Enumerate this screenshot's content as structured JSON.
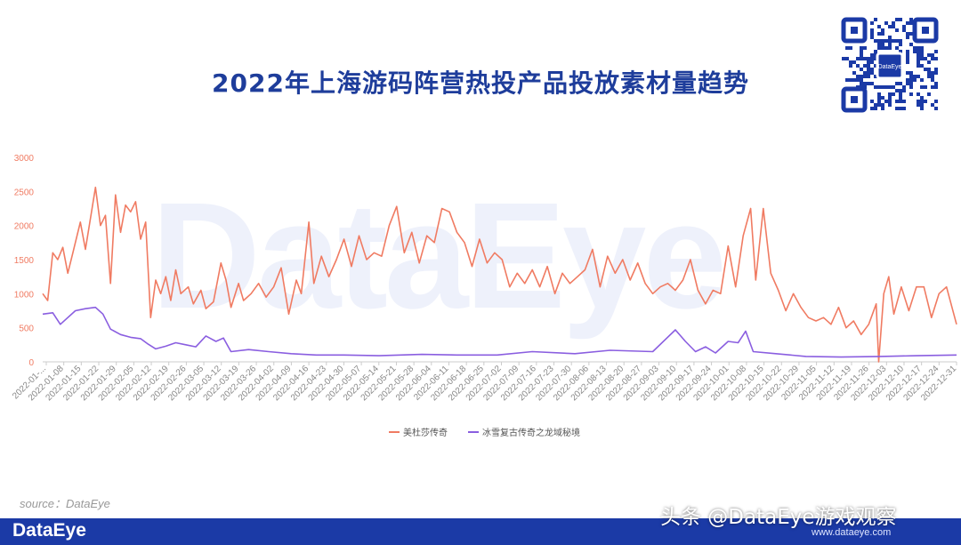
{
  "title": "2022年上海游码阵营热投产品投放素材量趋势",
  "watermark": "DataEye",
  "source": "source：DataEye",
  "footer_logo": "DataEye",
  "caption": "头条 @DataEye游戏观察",
  "caption_url": "www.dataeye.com",
  "qr_label": "DataEye",
  "colors": {
    "title": "#1e3d9b",
    "series1": "#f07b62",
    "series2": "#8a5ee0",
    "axis": "#999999",
    "footer": "#1b3aa6"
  },
  "chart_data": {
    "type": "line",
    "title": "2022年上海游码阵营热投产品投放素材量趋势",
    "xlabel": "",
    "ylabel": "",
    "ylim": [
      0,
      3000
    ],
    "yticks": [
      0,
      500,
      1000,
      1500,
      2000,
      2500,
      3000
    ],
    "x_ticks": [
      "2022-01-...",
      "2022-01-08",
      "2022-01-15",
      "2022-01-22",
      "2022-01-29",
      "2022-02-05",
      "2022-02-12",
      "2022-02-19",
      "2022-02-26",
      "2022-03-05",
      "2022-03-12",
      "2022-03-19",
      "2022-03-26",
      "2022-04-02",
      "2022-04-09",
      "2022-04-16",
      "2022-04-23",
      "2022-04-30",
      "2022-05-07",
      "2022-05-14",
      "2022-05-21",
      "2022-05-28",
      "2022-06-04",
      "2022-06-11",
      "2022-06-18",
      "2022-06-25",
      "2022-07-02",
      "2022-07-09",
      "2022-07-16",
      "2022-07-23",
      "2022-07-30",
      "2022-08-06",
      "2022-08-13",
      "2022-08-20",
      "2022-08-27",
      "2022-09-03",
      "2022-09-10",
      "2022-09-17",
      "2022-09-24",
      "2022-10-01",
      "2022-10-08",
      "2022-10-15",
      "2022-10-22",
      "2022-10-29",
      "2022-11-05",
      "2022-11-12",
      "2022-11-19",
      "2022-11-26",
      "2022-12-03",
      "2022-12-10",
      "2022-12-17",
      "2022-12-24",
      "2022-12-31"
    ],
    "legend_position": "bottom",
    "grid": false,
    "series": [
      {
        "name": "美杜莎传奇",
        "color": "#f07b62",
        "values": [
          {
            "x": "2022-01-01",
            "y": 1000
          },
          {
            "x": "2022-01-03",
            "y": 900
          },
          {
            "x": "2022-01-05",
            "y": 1600
          },
          {
            "x": "2022-01-07",
            "y": 1500
          },
          {
            "x": "2022-01-09",
            "y": 1680
          },
          {
            "x": "2022-01-11",
            "y": 1300
          },
          {
            "x": "2022-01-13",
            "y": 1600
          },
          {
            "x": "2022-01-16",
            "y": 2050
          },
          {
            "x": "2022-01-18",
            "y": 1650
          },
          {
            "x": "2022-01-20",
            "y": 2100
          },
          {
            "x": "2022-01-22",
            "y": 2560
          },
          {
            "x": "2022-01-24",
            "y": 2000
          },
          {
            "x": "2022-01-26",
            "y": 2150
          },
          {
            "x": "2022-01-28",
            "y": 1150
          },
          {
            "x": "2022-01-30",
            "y": 2450
          },
          {
            "x": "2022-02-01",
            "y": 1900
          },
          {
            "x": "2022-02-03",
            "y": 2300
          },
          {
            "x": "2022-02-05",
            "y": 2200
          },
          {
            "x": "2022-02-07",
            "y": 2350
          },
          {
            "x": "2022-02-09",
            "y": 1800
          },
          {
            "x": "2022-02-11",
            "y": 2050
          },
          {
            "x": "2022-02-13",
            "y": 650
          },
          {
            "x": "2022-02-15",
            "y": 1200
          },
          {
            "x": "2022-02-17",
            "y": 1000
          },
          {
            "x": "2022-02-19",
            "y": 1250
          },
          {
            "x": "2022-02-21",
            "y": 900
          },
          {
            "x": "2022-02-23",
            "y": 1350
          },
          {
            "x": "2022-02-25",
            "y": 1000
          },
          {
            "x": "2022-02-28",
            "y": 1100
          },
          {
            "x": "2022-03-02",
            "y": 850
          },
          {
            "x": "2022-03-05",
            "y": 1050
          },
          {
            "x": "2022-03-07",
            "y": 780
          },
          {
            "x": "2022-03-10",
            "y": 880
          },
          {
            "x": "2022-03-13",
            "y": 1450
          },
          {
            "x": "2022-03-15",
            "y": 1200
          },
          {
            "x": "2022-03-17",
            "y": 800
          },
          {
            "x": "2022-03-20",
            "y": 1150
          },
          {
            "x": "2022-03-22",
            "y": 900
          },
          {
            "x": "2022-03-25",
            "y": 1000
          },
          {
            "x": "2022-03-28",
            "y": 1150
          },
          {
            "x": "2022-03-31",
            "y": 950
          },
          {
            "x": "2022-04-03",
            "y": 1100
          },
          {
            "x": "2022-04-06",
            "y": 1380
          },
          {
            "x": "2022-04-09",
            "y": 700
          },
          {
            "x": "2022-04-12",
            "y": 1200
          },
          {
            "x": "2022-04-14",
            "y": 1000
          },
          {
            "x": "2022-04-17",
            "y": 2050
          },
          {
            "x": "2022-04-19",
            "y": 1150
          },
          {
            "x": "2022-04-22",
            "y": 1550
          },
          {
            "x": "2022-04-25",
            "y": 1250
          },
          {
            "x": "2022-04-28",
            "y": 1500
          },
          {
            "x": "2022-05-01",
            "y": 1800
          },
          {
            "x": "2022-05-04",
            "y": 1400
          },
          {
            "x": "2022-05-07",
            "y": 1850
          },
          {
            "x": "2022-05-10",
            "y": 1500
          },
          {
            "x": "2022-05-13",
            "y": 1600
          },
          {
            "x": "2022-05-16",
            "y": 1550
          },
          {
            "x": "2022-05-19",
            "y": 2000
          },
          {
            "x": "2022-05-22",
            "y": 2280
          },
          {
            "x": "2022-05-25",
            "y": 1600
          },
          {
            "x": "2022-05-28",
            "y": 1900
          },
          {
            "x": "2022-05-31",
            "y": 1450
          },
          {
            "x": "2022-06-03",
            "y": 1850
          },
          {
            "x": "2022-06-06",
            "y": 1750
          },
          {
            "x": "2022-06-09",
            "y": 2250
          },
          {
            "x": "2022-06-12",
            "y": 2200
          },
          {
            "x": "2022-06-15",
            "y": 1900
          },
          {
            "x": "2022-06-18",
            "y": 1750
          },
          {
            "x": "2022-06-21",
            "y": 1400
          },
          {
            "x": "2022-06-24",
            "y": 1800
          },
          {
            "x": "2022-06-27",
            "y": 1450
          },
          {
            "x": "2022-06-30",
            "y": 1600
          },
          {
            "x": "2022-07-03",
            "y": 1500
          },
          {
            "x": "2022-07-06",
            "y": 1100
          },
          {
            "x": "2022-07-09",
            "y": 1300
          },
          {
            "x": "2022-07-12",
            "y": 1150
          },
          {
            "x": "2022-07-15",
            "y": 1350
          },
          {
            "x": "2022-07-18",
            "y": 1100
          },
          {
            "x": "2022-07-21",
            "y": 1400
          },
          {
            "x": "2022-07-24",
            "y": 1000
          },
          {
            "x": "2022-07-27",
            "y": 1300
          },
          {
            "x": "2022-07-30",
            "y": 1150
          },
          {
            "x": "2022-08-02",
            "y": 1250
          },
          {
            "x": "2022-08-05",
            "y": 1350
          },
          {
            "x": "2022-08-08",
            "y": 1650
          },
          {
            "x": "2022-08-11",
            "y": 1100
          },
          {
            "x": "2022-08-14",
            "y": 1550
          },
          {
            "x": "2022-08-17",
            "y": 1300
          },
          {
            "x": "2022-08-20",
            "y": 1500
          },
          {
            "x": "2022-08-23",
            "y": 1200
          },
          {
            "x": "2022-08-26",
            "y": 1450
          },
          {
            "x": "2022-08-29",
            "y": 1150
          },
          {
            "x": "2022-09-01",
            "y": 1000
          },
          {
            "x": "2022-09-04",
            "y": 1100
          },
          {
            "x": "2022-09-07",
            "y": 1150
          },
          {
            "x": "2022-09-10",
            "y": 1050
          },
          {
            "x": "2022-09-13",
            "y": 1200
          },
          {
            "x": "2022-09-16",
            "y": 1500
          },
          {
            "x": "2022-09-19",
            "y": 1050
          },
          {
            "x": "2022-09-22",
            "y": 850
          },
          {
            "x": "2022-09-25",
            "y": 1050
          },
          {
            "x": "2022-09-28",
            "y": 1000
          },
          {
            "x": "2022-10-01",
            "y": 1700
          },
          {
            "x": "2022-10-04",
            "y": 1100
          },
          {
            "x": "2022-10-07",
            "y": 1850
          },
          {
            "x": "2022-10-10",
            "y": 2250
          },
          {
            "x": "2022-10-12",
            "y": 1200
          },
          {
            "x": "2022-10-15",
            "y": 2250
          },
          {
            "x": "2022-10-18",
            "y": 1300
          },
          {
            "x": "2022-10-21",
            "y": 1050
          },
          {
            "x": "2022-10-24",
            "y": 750
          },
          {
            "x": "2022-10-27",
            "y": 1000
          },
          {
            "x": "2022-10-30",
            "y": 800
          },
          {
            "x": "2022-11-02",
            "y": 650
          },
          {
            "x": "2022-11-05",
            "y": 600
          },
          {
            "x": "2022-11-08",
            "y": 650
          },
          {
            "x": "2022-11-11",
            "y": 550
          },
          {
            "x": "2022-11-14",
            "y": 800
          },
          {
            "x": "2022-11-17",
            "y": 500
          },
          {
            "x": "2022-11-20",
            "y": 600
          },
          {
            "x": "2022-11-23",
            "y": 400
          },
          {
            "x": "2022-11-26",
            "y": 550
          },
          {
            "x": "2022-11-29",
            "y": 850
          },
          {
            "x": "2022-11-30",
            "y": 0
          },
          {
            "x": "2022-12-02",
            "y": 1000
          },
          {
            "x": "2022-12-04",
            "y": 1250
          },
          {
            "x": "2022-12-06",
            "y": 700
          },
          {
            "x": "2022-12-09",
            "y": 1100
          },
          {
            "x": "2022-12-12",
            "y": 750
          },
          {
            "x": "2022-12-15",
            "y": 1100
          },
          {
            "x": "2022-12-18",
            "y": 1100
          },
          {
            "x": "2022-12-21",
            "y": 650
          },
          {
            "x": "2022-12-24",
            "y": 1000
          },
          {
            "x": "2022-12-27",
            "y": 1100
          },
          {
            "x": "2022-12-31",
            "y": 550
          }
        ]
      },
      {
        "name": "冰雪复古传奇之龙域秘境",
        "color": "#8a5ee0",
        "values": [
          {
            "x": "2022-01-01",
            "y": 700
          },
          {
            "x": "2022-01-05",
            "y": 720
          },
          {
            "x": "2022-01-08",
            "y": 550
          },
          {
            "x": "2022-01-11",
            "y": 650
          },
          {
            "x": "2022-01-14",
            "y": 750
          },
          {
            "x": "2022-01-18",
            "y": 780
          },
          {
            "x": "2022-01-22",
            "y": 800
          },
          {
            "x": "2022-01-25",
            "y": 700
          },
          {
            "x": "2022-01-28",
            "y": 480
          },
          {
            "x": "2022-02-01",
            "y": 400
          },
          {
            "x": "2022-02-05",
            "y": 360
          },
          {
            "x": "2022-02-09",
            "y": 340
          },
          {
            "x": "2022-02-12",
            "y": 260
          },
          {
            "x": "2022-02-15",
            "y": 190
          },
          {
            "x": "2022-02-19",
            "y": 230
          },
          {
            "x": "2022-02-23",
            "y": 280
          },
          {
            "x": "2022-02-27",
            "y": 250
          },
          {
            "x": "2022-03-03",
            "y": 220
          },
          {
            "x": "2022-03-07",
            "y": 380
          },
          {
            "x": "2022-03-11",
            "y": 300
          },
          {
            "x": "2022-03-14",
            "y": 350
          },
          {
            "x": "2022-03-17",
            "y": 150
          },
          {
            "x": "2022-03-24",
            "y": 180
          },
          {
            "x": "2022-04-01",
            "y": 150
          },
          {
            "x": "2022-04-10",
            "y": 120
          },
          {
            "x": "2022-04-20",
            "y": 100
          },
          {
            "x": "2022-05-01",
            "y": 100
          },
          {
            "x": "2022-05-15",
            "y": 90
          },
          {
            "x": "2022-06-01",
            "y": 110
          },
          {
            "x": "2022-06-15",
            "y": 100
          },
          {
            "x": "2022-07-01",
            "y": 100
          },
          {
            "x": "2022-07-15",
            "y": 150
          },
          {
            "x": "2022-08-01",
            "y": 120
          },
          {
            "x": "2022-08-15",
            "y": 170
          },
          {
            "x": "2022-09-01",
            "y": 150
          },
          {
            "x": "2022-09-10",
            "y": 470
          },
          {
            "x": "2022-09-14",
            "y": 300
          },
          {
            "x": "2022-09-18",
            "y": 150
          },
          {
            "x": "2022-09-22",
            "y": 220
          },
          {
            "x": "2022-09-26",
            "y": 130
          },
          {
            "x": "2022-10-01",
            "y": 300
          },
          {
            "x": "2022-10-05",
            "y": 280
          },
          {
            "x": "2022-10-08",
            "y": 450
          },
          {
            "x": "2022-10-11",
            "y": 150
          },
          {
            "x": "2022-10-20",
            "y": 120
          },
          {
            "x": "2022-11-01",
            "y": 80
          },
          {
            "x": "2022-11-15",
            "y": 70
          },
          {
            "x": "2022-12-01",
            "y": 80
          },
          {
            "x": "2022-12-15",
            "y": 90
          },
          {
            "x": "2022-12-31",
            "y": 100
          }
        ]
      }
    ]
  }
}
